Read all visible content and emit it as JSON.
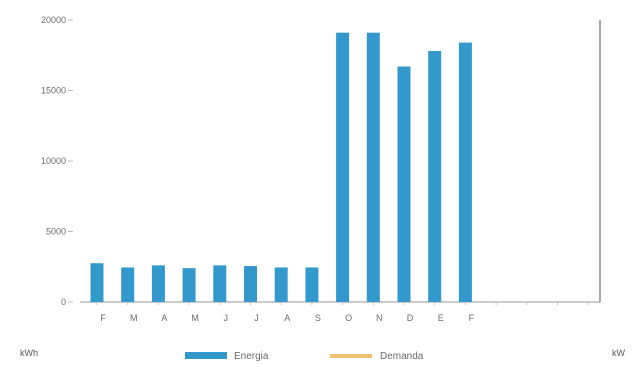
{
  "chart_data": {
    "type": "bar",
    "categories": [
      "F",
      "M",
      "A",
      "M",
      "J",
      "J",
      "A",
      "S",
      "O",
      "N",
      "D",
      "E",
      "F",
      "",
      "",
      "",
      ""
    ],
    "series": [
      {
        "name": "Energia",
        "color": "#3399cc",
        "values": [
          2750,
          2450,
          2600,
          2400,
          2600,
          2550,
          2450,
          2450,
          19100,
          19100,
          16700,
          17800,
          18400,
          0,
          0,
          0,
          0
        ]
      },
      {
        "name": "Demanda",
        "color": "#f0c070",
        "values": [
          0,
          0,
          0,
          0,
          0,
          0,
          0,
          0,
          0,
          0,
          0,
          0,
          0,
          0,
          0,
          0,
          0
        ]
      }
    ],
    "ylim": [
      0,
      20000
    ],
    "yticks": [
      "20000",
      "15000",
      "10000",
      "5000",
      "0"
    ],
    "ytick_values": [
      20000,
      15000,
      10000,
      5000,
      0
    ],
    "y_unit_left": "kWh",
    "y_unit_right": "kW",
    "legend_position": "bottom"
  }
}
